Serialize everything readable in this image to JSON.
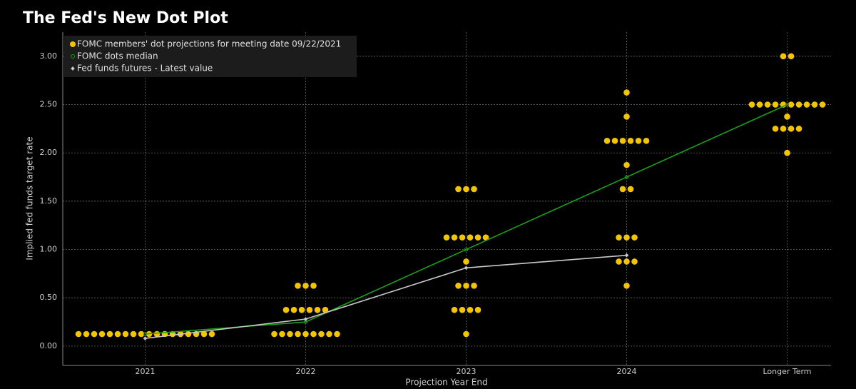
{
  "chart_data": {
    "type": "dot",
    "title": "The Fed's New Dot Plot",
    "y_label": "Implied fed funds target rate",
    "x_label": "Projection Year End",
    "categories": [
      "2021",
      "2022",
      "2023",
      "2024",
      "Longer Term"
    ],
    "ylim": [
      -0.2,
      3.25
    ],
    "yticks": [
      {
        "value": 0,
        "label": "0.00"
      },
      {
        "value": 0.5,
        "label": "0.50"
      },
      {
        "value": 1,
        "label": "1.00"
      },
      {
        "value": 1.5,
        "label": "1.50"
      },
      {
        "value": 2,
        "label": "2.00"
      },
      {
        "value": 2.5,
        "label": "2.50"
      },
      {
        "value": 3,
        "label": "3.00"
      }
    ],
    "grid": true,
    "series": [
      {
        "name": "FOMC members' dot projections for meeting date 09/22/2021",
        "color": "#f2c500",
        "values": [
          [
            0.125,
            0.125,
            0.125,
            0.125,
            0.125,
            0.125,
            0.125,
            0.125,
            0.125,
            0.125,
            0.125,
            0.125,
            0.125,
            0.125,
            0.125,
            0.125,
            0.125,
            0.125
          ],
          [
            0.125,
            0.125,
            0.125,
            0.125,
            0.125,
            0.125,
            0.125,
            0.125,
            0.125,
            0.375,
            0.375,
            0.375,
            0.375,
            0.375,
            0.375,
            0.625,
            0.625,
            0.625
          ],
          [
            0.125,
            0.375,
            0.375,
            0.375,
            0.375,
            0.625,
            0.625,
            0.625,
            0.875,
            1.125,
            1.125,
            1.125,
            1.125,
            1.125,
            1.125,
            1.625,
            1.625,
            1.625
          ],
          [
            0.625,
            0.875,
            0.875,
            0.875,
            1.125,
            1.125,
            1.125,
            1.625,
            1.625,
            1.875,
            2.125,
            2.125,
            2.125,
            2.125,
            2.125,
            2.125,
            2.375,
            2.625
          ],
          [
            2.0,
            2.25,
            2.25,
            2.25,
            2.25,
            2.375,
            2.5,
            2.5,
            2.5,
            2.5,
            2.5,
            2.5,
            2.5,
            2.5,
            2.5,
            2.5,
            3.0,
            3.0
          ]
        ]
      },
      {
        "name": "FOMC dots median",
        "color": "#1aa01a",
        "values": [
          0.125,
          0.25,
          1.0,
          1.75,
          2.5
        ]
      },
      {
        "name": "Fed funds futures - Latest value",
        "color": "#c8c8c8",
        "values": [
          0.08,
          0.28,
          0.81,
          0.94,
          null
        ]
      }
    ]
  }
}
